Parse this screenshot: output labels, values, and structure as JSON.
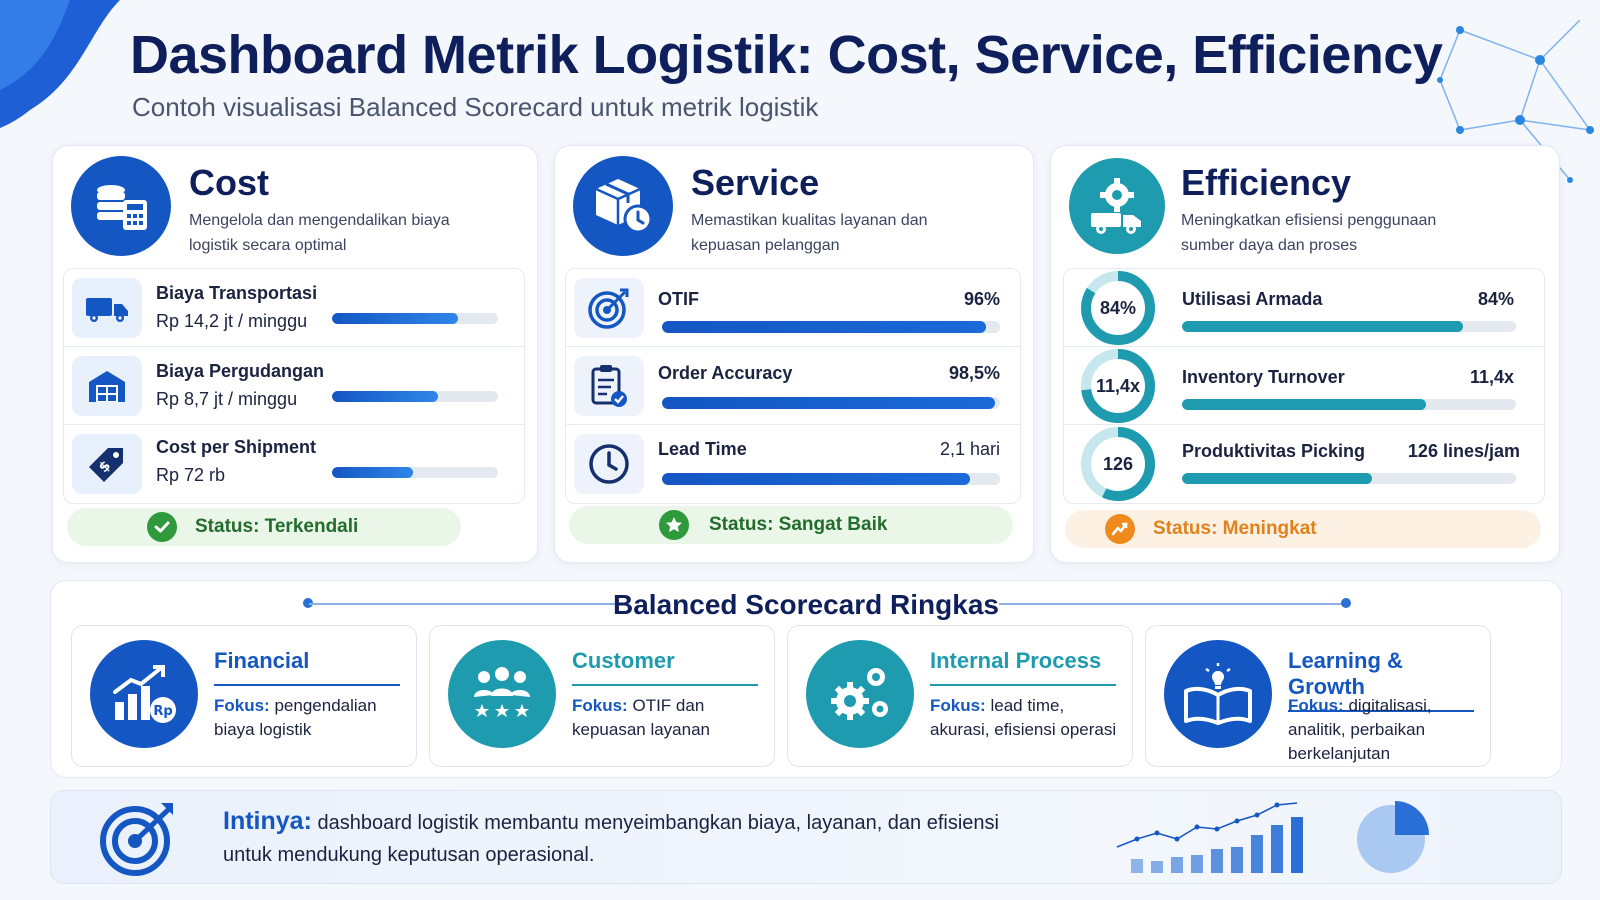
{
  "header": {
    "title": "Dashboard Metrik Logistik: Cost, Service, Efficiency",
    "subtitle": "Contoh visualisasi Balanced Scorecard untuk metrik logistik"
  },
  "colors": {
    "navy": "#0f1f5c",
    "blue": "#1456c2",
    "teal": "#1f9bb0",
    "green": "#2e9a3c",
    "orange": "#f08a1c"
  },
  "cost": {
    "title": "Cost",
    "desc": "Mengelola dan mengendalikan biaya logistik secara optimal",
    "icon": "coins-calculator-icon",
    "rows": [
      {
        "label": "Biaya Transportasi",
        "value": "Rp 14,2 jt / minggu",
        "level": 0.76,
        "icon": "truck-icon"
      },
      {
        "label": "Biaya Pergudangan",
        "value": "Rp 8,7 jt / minggu",
        "level": 0.64,
        "icon": "warehouse-icon"
      },
      {
        "label": "Cost per Shipment",
        "value": "Rp 72 rb",
        "level": 0.49,
        "icon": "price-tag-icon"
      }
    ],
    "status": "Status: Terkendali"
  },
  "service": {
    "title": "Service",
    "desc": "Memastikan kualitas layanan dan kepuasan pelanggan",
    "icon": "package-clock-icon",
    "rows": [
      {
        "label": "OTIF",
        "value": "96%",
        "level": 0.96,
        "icon": "target-icon"
      },
      {
        "label": "Order Accuracy",
        "value": "98,5%",
        "level": 0.985,
        "icon": "checklist-icon"
      },
      {
        "label": "Lead Time",
        "value": "2,1 hari",
        "level": 0.91,
        "icon": "clock-icon"
      }
    ],
    "status": "Status: Sangat Baik"
  },
  "efficiency": {
    "title": "Efficiency",
    "desc": "Meningkatkan efisiensi penggunaan sumber daya dan proses",
    "icon": "gear-truck-icon",
    "rows": [
      {
        "label": "Utilisasi Armada",
        "value": "84%",
        "ring": "84%",
        "level": 0.84
      },
      {
        "label": "Inventory Turnover",
        "value": "11,4x",
        "ring": "11,4x",
        "level": 0.73
      },
      {
        "label": "Produktivitas Picking",
        "value": "126 lines/jam",
        "ring": "126",
        "level": 0.57
      }
    ],
    "status": "Status: Meningkat"
  },
  "bsc": {
    "title": "Balanced Scorecard Ringkas",
    "focus_label": "Fokus:",
    "cards": [
      {
        "name": "Financial",
        "focus": "pengendalian biaya logistik",
        "icon": "growth-chart-rp-icon"
      },
      {
        "name": "Customer",
        "focus": "OTIF dan kepuasan layanan",
        "icon": "customers-stars-icon"
      },
      {
        "name": "Internal Process",
        "focus": "lead time, akurasi, efisiensi operasi",
        "icon": "gears-icon"
      },
      {
        "name": "Learning & Growth",
        "focus": "digitalisasi, analitik, perbaikan berkelanjutan",
        "icon": "book-lightbulb-icon"
      }
    ]
  },
  "intinya": {
    "label": "Intinya:",
    "text": "dashboard logistik membantu menyeimbangkan biaya, layanan, dan efisiensi untuk mendukung keputusan operasional."
  }
}
